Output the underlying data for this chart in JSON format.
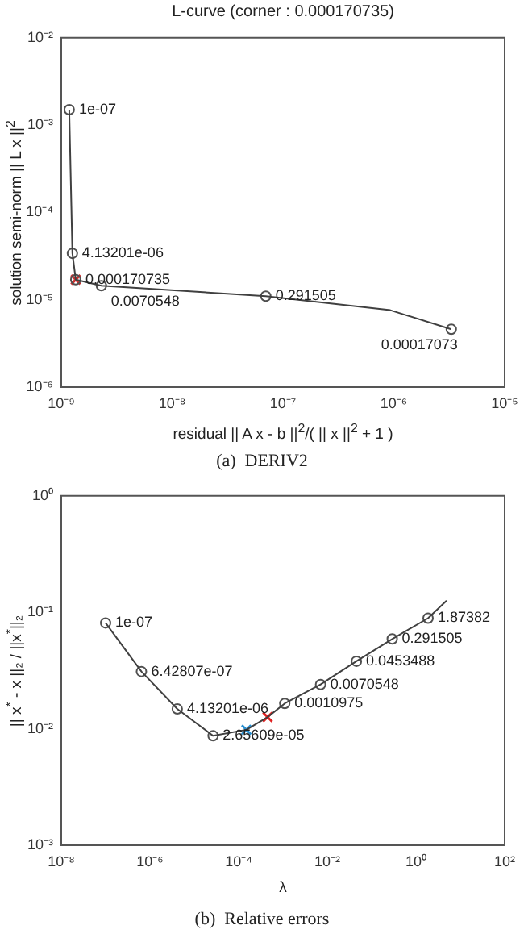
{
  "chart_data": [
    {
      "type": "line",
      "title": "L-curve (corner : 0.000170735)",
      "xlabel": "residual || A x - b ||$^{2}$/( || x ||$^{2}$ + 1 )",
      "ylabel": "solution semi-norm || L x ||$^{2}$",
      "log": "xy",
      "xlim": [
        1e-09,
        1e-05
      ],
      "xticks": [
        {
          "value": 1e-09,
          "label": "10⁻⁹"
        },
        {
          "value": 1e-08,
          "label": "10⁻⁸"
        },
        {
          "value": 1e-07,
          "label": "10⁻⁷"
        },
        {
          "value": 1e-06,
          "label": "10⁻⁶"
        },
        {
          "value": 1e-05,
          "label": "10⁻⁵"
        }
      ],
      "ylim": [
        1e-06,
        0.01
      ],
      "yticks": [
        {
          "value": 1e-06,
          "label": "10⁻⁶"
        },
        {
          "value": 1e-05,
          "label": "10⁻⁵"
        },
        {
          "value": 0.0001,
          "label": "10⁻⁴"
        },
        {
          "value": 0.001,
          "label": "10⁻³"
        },
        {
          "value": 0.01,
          "label": "10⁻²"
        }
      ],
      "series": [
        {
          "type": "line",
          "color": "#404040",
          "marker": "none",
          "x": [
            1.18e-09,
            1.26e-09,
            1.35e-09,
            2.3e-09,
            7e-08,
            9.3e-07,
            3.3e-06
          ],
          "values": [
            0.0015,
            3.4e-05,
            1.7e-05,
            1.45e-05,
            1.1e-05,
            7.6e-06,
            4.6e-06
          ]
        },
        {
          "type": "scatter",
          "color": "#505050",
          "marker": "circle",
          "x": [
            1.18e-09,
            1.26e-09,
            1.35e-09,
            2.3e-09,
            7e-08,
            3.3e-06
          ],
          "values": [
            0.0015,
            3.4e-05,
            1.7e-05,
            1.45e-05,
            1.1e-05,
            4.6e-06
          ]
        },
        {
          "type": "scatter",
          "color": "#d03030",
          "marker": "cross",
          "x": [
            1.35e-09
          ],
          "values": [
            1.7e-05
          ]
        }
      ],
      "annotations": [
        {
          "text": "1e-07",
          "x": 1.18e-09,
          "y": 0.0015
        },
        {
          "text": "4.13201e-06",
          "x": 1.26e-09,
          "y": 3.4e-05
        },
        {
          "text": "0.000170735",
          "x": 1.35e-09,
          "y": 1.7e-05
        },
        {
          "text": "0.0070548",
          "x": 2.3e-09,
          "y": 1.45e-05
        },
        {
          "text": "0.291505",
          "x": 7e-08,
          "y": 1.1e-05
        },
        {
          "text": "0.00017073",
          "x": 3.3e-06,
          "y": 4.6e-06
        },
        "(a)  DERIV2"
      ]
    },
    {
      "type": "line",
      "xlabel": "λ",
      "ylabel": "|| x$^{*}$ - x ||₂ / ||x$^{*}$||₂",
      "log": "xy",
      "xlim": [
        1e-08,
        100
      ],
      "xticks": [
        {
          "value": 1e-08,
          "label": "10⁻⁸"
        },
        {
          "value": 1e-06,
          "label": "10⁻⁶"
        },
        {
          "value": 0.0001,
          "label": "10⁻⁴"
        },
        {
          "value": 0.01,
          "label": "10⁻²"
        },
        {
          "value": 1,
          "label": "10⁰"
        },
        {
          "value": 100,
          "label": "10²"
        }
      ],
      "ylim": [
        0.001,
        1
      ],
      "yticks": [
        {
          "value": 0.001,
          "label": "10⁻³"
        },
        {
          "value": 0.01,
          "label": "10⁻²"
        },
        {
          "value": 0.1,
          "label": "10⁻¹"
        },
        {
          "value": 1,
          "label": "10⁰"
        }
      ],
      "series": [
        {
          "type": "line",
          "color": "#404040",
          "marker": "none",
          "x": [
            1e-07,
            6.42807e-07,
            4.13201e-06,
            2.65609e-05,
            0.00015,
            0.00045,
            0.0010975,
            0.0070548,
            0.0453488,
            0.291505,
            1.87382,
            4.9
          ],
          "values": [
            0.081,
            0.031,
            0.0148,
            0.0087,
            0.0098,
            0.0126,
            0.0165,
            0.024,
            0.038,
            0.059,
            0.089,
            0.126
          ]
        },
        {
          "type": "scatter",
          "color": "#505050",
          "marker": "circle",
          "x": [
            1e-07,
            6.42807e-07,
            4.13201e-06,
            2.65609e-05,
            0.0010975,
            0.0070548,
            0.0453488,
            0.291505,
            1.87382
          ],
          "values": [
            0.081,
            0.031,
            0.0148,
            0.0087,
            0.0165,
            0.024,
            0.038,
            0.059,
            0.089
          ]
        },
        {
          "type": "scatter",
          "color": "#2a8fd0",
          "marker": "cross",
          "x": [
            0.00015
          ],
          "values": [
            0.0098
          ]
        },
        {
          "type": "scatter",
          "color": "#e02020",
          "marker": "cross",
          "x": [
            0.00045
          ],
          "values": [
            0.0126
          ]
        }
      ],
      "annotations": [
        {
          "text": "1e-07",
          "x": 1e-07,
          "y": 0.081
        },
        {
          "text": "6.42807e-07",
          "x": 6.42807e-07,
          "y": 0.031
        },
        {
          "text": "4.13201e-06",
          "x": 4.13201e-06,
          "y": 0.0148
        },
        {
          "text": "2.65609e-05",
          "x": 2.65609e-05,
          "y": 0.0087
        },
        {
          "text": "0.0010975",
          "x": 0.0010975,
          "y": 0.0165
        },
        {
          "text": "0.0070548",
          "x": 0.0070548,
          "y": 0.024
        },
        {
          "text": "0.0453488",
          "x": 0.0453488,
          "y": 0.038
        },
        {
          "text": "0.291505",
          "x": 0.291505,
          "y": 0.059
        },
        {
          "text": "1.87382",
          "x": 1.87382,
          "y": 0.089
        },
        "(b)  Relative errors"
      ]
    }
  ]
}
